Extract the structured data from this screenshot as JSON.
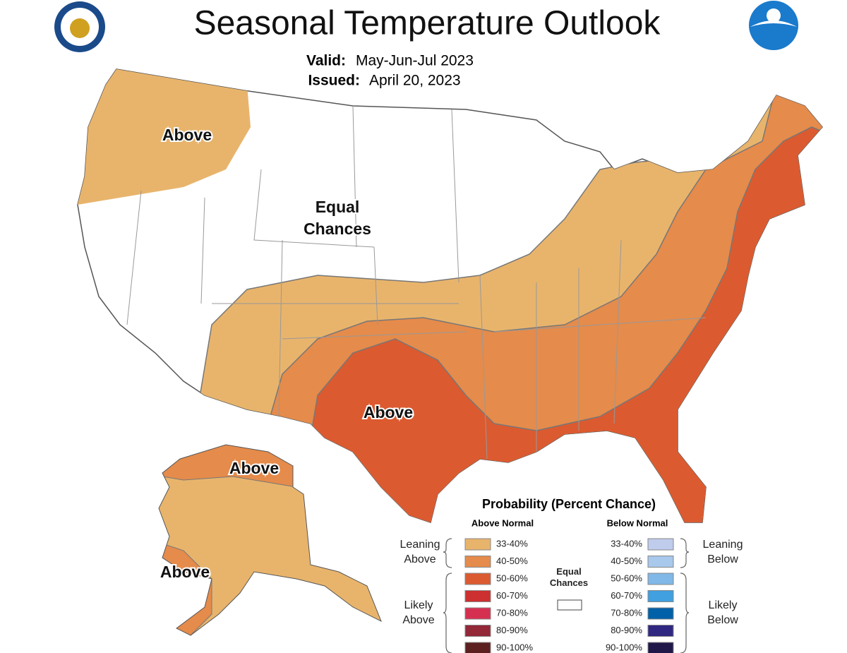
{
  "header": {
    "title": "Seasonal Temperature Outlook",
    "valid_label": "Valid:",
    "valid": "May-Jun-Jul 2023",
    "issued_label": "Issued:",
    "issued": "April 20, 2023"
  },
  "map_labels": [
    "Above",
    "Equal",
    "Chances",
    "Above",
    "Above",
    "Above"
  ],
  "legend": {
    "title": "Probability (Percent Chance)",
    "above_header": "Above Normal",
    "below_header": "Below Normal",
    "above": [
      {
        "label": "33-40%",
        "color": "#e8b46c"
      },
      {
        "label": "40-50%",
        "color": "#e58b4b"
      },
      {
        "label": "50-60%",
        "color": "#dc5a30"
      },
      {
        "label": "60-70%",
        "color": "#cc3030"
      },
      {
        "label": "70-80%",
        "color": "#d63050"
      },
      {
        "label": "80-90%",
        "color": "#922838"
      },
      {
        "label": "90-100%",
        "color": "#5c2020"
      }
    ],
    "below": [
      {
        "label": "33-40%",
        "color": "#c0ccec"
      },
      {
        "label": "40-50%",
        "color": "#a8c8ec"
      },
      {
        "label": "50-60%",
        "color": "#80b8e8"
      },
      {
        "label": "60-70%",
        "color": "#40a0e0"
      },
      {
        "label": "70-80%",
        "color": "#0060a8"
      },
      {
        "label": "80-90%",
        "color": "#302880"
      },
      {
        "label": "90-100%",
        "color": "#201848"
      }
    ],
    "leaning_above": "Leaning Above",
    "likely_above": "Likely Above",
    "leaning_below": "Leaning Below",
    "likely_below": "Likely Below",
    "equal_chances": "Equal Chances",
    "equal_color": "#ffffff"
  }
}
